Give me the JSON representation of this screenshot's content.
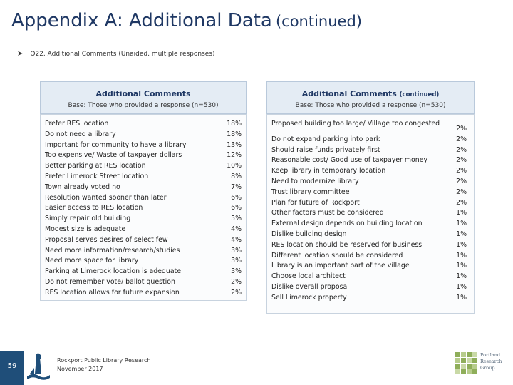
{
  "slide": {
    "title_main": "Appendix A: Additional Data",
    "title_sub": "(continued)",
    "question": "Q22. Additional Comments (Unaided, multiple responses)"
  },
  "left_panel": {
    "title": "Additional Comments",
    "base": "Base: Those who provided a response (n=530)",
    "rows": [
      {
        "label": "Prefer RES location",
        "value": "18%"
      },
      {
        "label": "Do not need a library",
        "value": "18%"
      },
      {
        "label": "Important for community to have a library",
        "value": "13%"
      },
      {
        "label": "Too expensive/ Waste of taxpayer dollars",
        "value": "12%"
      },
      {
        "label": "Better parking at RES location",
        "value": "10%"
      },
      {
        "label": "Prefer Limerock Street location",
        "value": "8%"
      },
      {
        "label": "Town already voted no",
        "value": "7%"
      },
      {
        "label": "Resolution wanted sooner than later",
        "value": "6%"
      },
      {
        "label": "Easier access to RES location",
        "value": "6%"
      },
      {
        "label": "Simply repair old building",
        "value": "5%"
      },
      {
        "label": "Modest size is adequate",
        "value": "4%"
      },
      {
        "label": "Proposal serves desires of select few",
        "value": "4%"
      },
      {
        "label": "Need more information/research/studies",
        "value": "3%"
      },
      {
        "label": "Need more space for library",
        "value": "3%"
      },
      {
        "label": "Parking at Limerock location is adequate",
        "value": "3%"
      },
      {
        "label": "Do not remember vote/ ballot question",
        "value": "2%"
      },
      {
        "label": "RES location allows for future expansion",
        "value": "2%"
      }
    ]
  },
  "right_panel": {
    "title": "Additional Comments",
    "title_suffix": "(continued)",
    "base": "Base: Those who provided a response (n=530)",
    "rows": [
      {
        "label": "Proposed building too large/ Village too congested",
        "value": "2%"
      },
      {
        "label": "Do not expand parking into park",
        "value": "2%"
      },
      {
        "label": "Should raise funds privately first",
        "value": "2%"
      },
      {
        "label": "Reasonable cost/ Good use of taxpayer money",
        "value": "2%"
      },
      {
        "label": "Keep library in temporary location",
        "value": "2%"
      },
      {
        "label": "Need to modernize library",
        "value": "2%"
      },
      {
        "label": "Trust library committee",
        "value": "2%"
      },
      {
        "label": "Plan for future of Rockport",
        "value": "2%"
      },
      {
        "label": "Other factors must be considered",
        "value": "1%"
      },
      {
        "label": "External design depends on building location",
        "value": "1%"
      },
      {
        "label": "Dislike building design",
        "value": "1%"
      },
      {
        "label": "RES location should be reserved for business",
        "value": "1%"
      },
      {
        "label": "Different location should be considered",
        "value": "1%"
      },
      {
        "label": "Library is an important part of the village",
        "value": "1%"
      },
      {
        "label": "Choose local architect",
        "value": "1%"
      },
      {
        "label": "Dislike overall proposal",
        "value": "1%"
      },
      {
        "label": "Sell Limerock property",
        "value": "1%"
      }
    ]
  },
  "footer": {
    "page_number": "59",
    "line1": "Rockport Public Library Research",
    "line2": "November 2017",
    "prg_line1": "Portland",
    "prg_line2": "Research",
    "prg_line3": "Group",
    "logo_icon": "lighthouse-logo-icon",
    "prg_icon": "prg-grid-logo-icon"
  }
}
